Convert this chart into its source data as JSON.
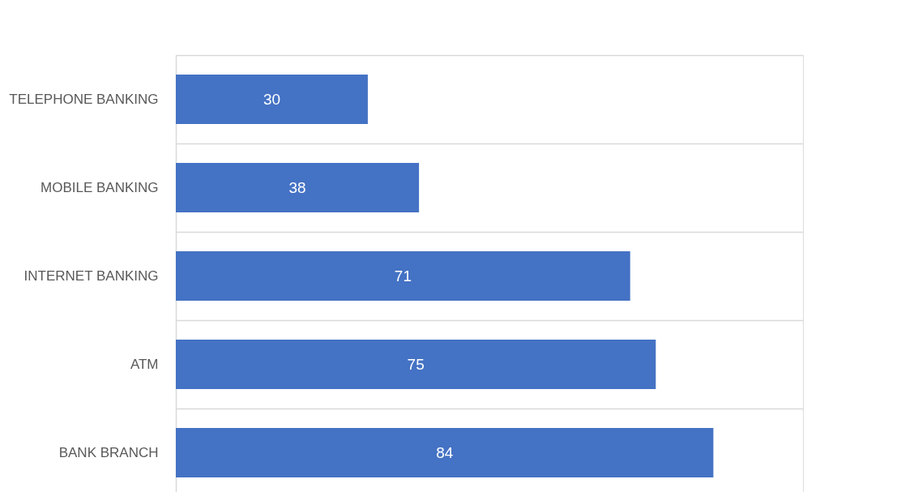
{
  "chart_data": {
    "type": "bar",
    "orientation": "horizontal",
    "categories": [
      "TELEPHONE BANKING",
      "MOBILE BANKING",
      "INTERNET BANKING",
      "ATM",
      "BANK BRANCH"
    ],
    "values": [
      30,
      38,
      71,
      75,
      84
    ],
    "color": "#4472c4",
    "data_labels": true,
    "xlim": [
      0,
      98
    ],
    "tick_labels": "y",
    "grid": "y"
  }
}
